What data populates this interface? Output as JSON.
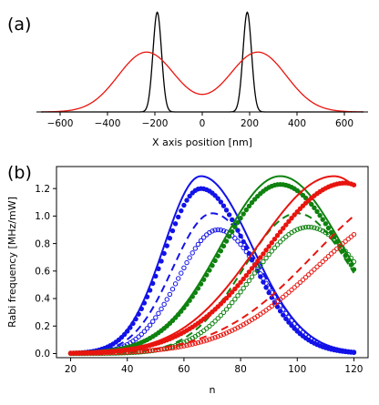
{
  "panels": {
    "a_label": "(a)",
    "b_label": "(b)"
  },
  "colors": {
    "black": "#000000",
    "red": "#e8150f",
    "blue": "#1212e8",
    "green": "#0f820f"
  },
  "chart_data": [
    {
      "type": "line",
      "panel": "(a)",
      "xlabel": "X axis position [nm]",
      "ylabel": "",
      "xlim": [
        -700,
        700
      ],
      "ylim": [
        0,
        1.05
      ],
      "xticks": [
        -600,
        -400,
        -200,
        0,
        200,
        400,
        600
      ],
      "xtick_labels": [
        "−600",
        "−400",
        "−200",
        "0",
        "200",
        "400",
        "600"
      ],
      "grid": false,
      "series": [
        {
          "color": "black",
          "shape": "two gaussian peaks",
          "centers": [
            -190,
            190
          ],
          "sigma": 18,
          "amplitude": 1.0
        },
        {
          "color": "red",
          "shape": "two gaussian peaks",
          "centers": [
            -235,
            235
          ],
          "sigma": 120,
          "amplitude": 0.6
        }
      ]
    },
    {
      "type": "line",
      "panel": "(b)",
      "xlabel": "n",
      "ylabel": "Rabi frequency [MHz/mW]",
      "xlim": [
        15,
        125
      ],
      "ylim": [
        -0.03,
        1.36
      ],
      "xticks": [
        20,
        40,
        60,
        80,
        100,
        120
      ],
      "xtick_labels": [
        "20",
        "40",
        "60",
        "80",
        "100",
        "120"
      ],
      "yticks": [
        0.0,
        0.2,
        0.4,
        0.6,
        0.8,
        1.0,
        1.2
      ],
      "ytick_labels": [
        "0.0",
        "0.2",
        "0.4",
        "0.6",
        "0.8",
        "1.0",
        "1.2"
      ],
      "grid": false,
      "series": [
        {
          "color": "blue",
          "style": "solid",
          "peak_n": 66,
          "peak": 1.29,
          "sigma_rise": 13,
          "sigma_fall": 18
        },
        {
          "color": "blue",
          "style": "filled-dots",
          "peak_n": 66,
          "peak": 1.2,
          "sigma_rise": 13,
          "sigma_fall": 17
        },
        {
          "color": "blue",
          "style": "dashed",
          "peak_n": 70,
          "peak": 1.02,
          "sigma_rise": 14,
          "sigma_fall": 17
        },
        {
          "color": "blue",
          "style": "open-circles",
          "peak_n": 72,
          "peak": 0.9,
          "sigma_rise": 14,
          "sigma_fall": 16
        },
        {
          "color": "green",
          "style": "solid",
          "peak_n": 94,
          "peak": 1.29,
          "sigma_rise": 21,
          "sigma_fall": 22
        },
        {
          "color": "green",
          "style": "filled-dots",
          "peak_n": 94,
          "peak": 1.23,
          "sigma_rise": 21,
          "sigma_fall": 22
        },
        {
          "color": "green",
          "style": "dashed",
          "peak_n": 100,
          "peak": 1.02,
          "sigma_rise": 19,
          "sigma_fall": 19
        },
        {
          "color": "green",
          "style": "open-circles",
          "peak_n": 104,
          "peak": 0.92,
          "sigma_rise": 20,
          "sigma_fall": 20
        },
        {
          "color": "red",
          "style": "solid",
          "peak_n": 113,
          "peak": 1.29,
          "sigma_rise": 27,
          "sigma_fall": 20
        },
        {
          "color": "red",
          "style": "filled-dots",
          "peak_n": 117,
          "peak": 1.24,
          "sigma_rise": 28,
          "sigma_fall": 20
        },
        {
          "color": "red",
          "style": "dashed",
          "peak_n": 140,
          "peak": 1.19,
          "sigma_rise": 34,
          "sigma_fall": 20
        },
        {
          "color": "red",
          "style": "open-circles",
          "peak_n": 140,
          "peak": 1.04,
          "sigma_rise": 33,
          "sigma_fall": 20
        }
      ]
    }
  ]
}
